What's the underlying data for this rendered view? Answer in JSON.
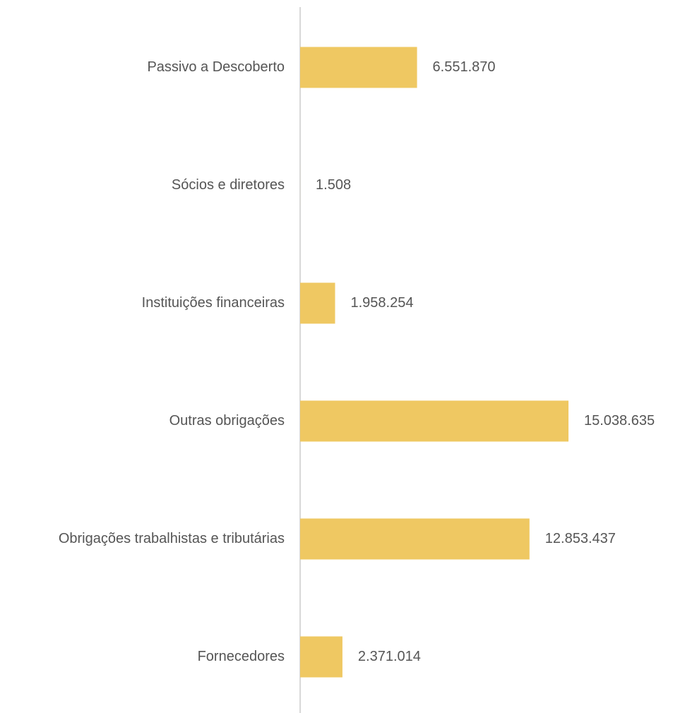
{
  "chart_data": {
    "type": "barh",
    "color": "#efc862",
    "categories": [
      "Passivo a Descoberto",
      "Sócios e diretores",
      "Instituições financeiras",
      "Outras obrigações",
      "Obrigações trabalhistas e tributárias",
      "Fornecedores"
    ],
    "values": [
      6551870,
      1508,
      1958254,
      15038635,
      12853437,
      2371014
    ],
    "value_labels": [
      "6.551.870",
      "1.508",
      "1.958.254",
      "15.038.635",
      "12.853.437",
      "2.371.014"
    ]
  }
}
